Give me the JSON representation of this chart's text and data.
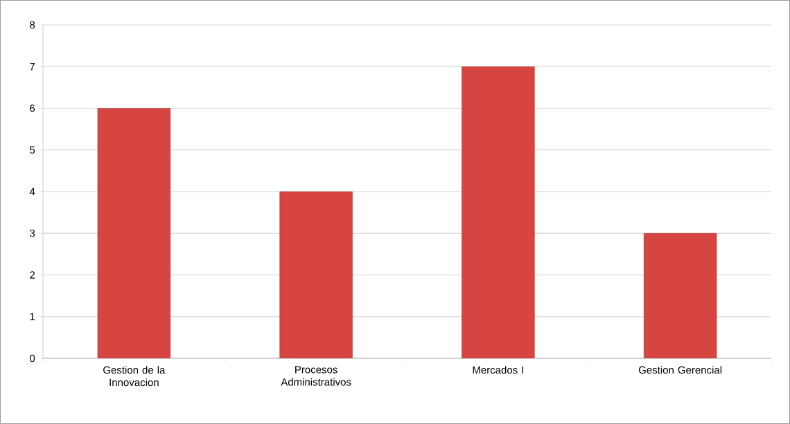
{
  "chart_data": {
    "type": "bar",
    "categories": [
      "Gestion de la Innovacion",
      "Procesos Administrativos",
      "Mercados I",
      "Gestion Gerencial"
    ],
    "values": [
      6,
      4,
      7,
      3
    ],
    "color": "#d64541",
    "ylim": [
      0,
      8
    ],
    "yticks": [
      0,
      1,
      2,
      3,
      4,
      5,
      6,
      7,
      8
    ],
    "grid": "y"
  }
}
